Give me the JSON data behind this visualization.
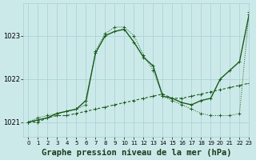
{
  "title": "Graphe pression niveau de la mer (hPa)",
  "bg_color": "#cce9ea",
  "grid_color": "#aad4d6",
  "line_color": "#1a5c1a",
  "xlim": [
    -0.5,
    23
  ],
  "ylim": [
    1020.65,
    1023.75
  ],
  "yticks": [
    1021,
    1022,
    1023
  ],
  "xticks": [
    0,
    1,
    2,
    3,
    4,
    5,
    6,
    7,
    8,
    9,
    10,
    11,
    12,
    13,
    14,
    15,
    16,
    17,
    18,
    19,
    20,
    21,
    22,
    23
  ],
  "s1_x": [
    0,
    1,
    2,
    3,
    4,
    5,
    6,
    7,
    8,
    9,
    10,
    11,
    12,
    13,
    14,
    15,
    16,
    17,
    18,
    19,
    20,
    21,
    22,
    23
  ],
  "s1_y": [
    1021.0,
    1021.0,
    1021.1,
    1021.15,
    1021.15,
    1021.2,
    1021.25,
    1021.3,
    1021.35,
    1021.4,
    1021.45,
    1021.5,
    1021.55,
    1021.6,
    1021.65,
    1021.55,
    1021.55,
    1021.6,
    1021.65,
    1021.7,
    1021.75,
    1021.8,
    1021.85,
    1021.9
  ],
  "s2_x": [
    0,
    1,
    2,
    3,
    4,
    5,
    6,
    7,
    8,
    9,
    10,
    11,
    12,
    13,
    14,
    15,
    16,
    17,
    18,
    19,
    20,
    21,
    22,
    23
  ],
  "s2_y": [
    1021.0,
    1021.05,
    1021.1,
    1021.2,
    1021.25,
    1021.3,
    1021.5,
    1022.6,
    1023.0,
    1023.1,
    1023.15,
    1022.85,
    1022.5,
    1022.3,
    1021.6,
    1021.55,
    1021.45,
    1021.4,
    1021.5,
    1021.55,
    1022.0,
    1022.2,
    1022.4,
    1023.5
  ],
  "s3_x": [
    0,
    1,
    2,
    3,
    4,
    5,
    6,
    7,
    8,
    9,
    10,
    11,
    12,
    13,
    14,
    15,
    16,
    17,
    18,
    19,
    20,
    21,
    22,
    23
  ],
  "s3_y": [
    1021.0,
    1021.1,
    1021.15,
    1021.2,
    1021.25,
    1021.3,
    1021.4,
    1022.65,
    1023.05,
    1023.2,
    1023.2,
    1023.0,
    1022.55,
    1022.2,
    1021.6,
    1021.5,
    1021.4,
    1021.3,
    1021.2,
    1021.15,
    1021.15,
    1021.15,
    1021.2,
    1023.55
  ],
  "title_fontsize": 7.5
}
